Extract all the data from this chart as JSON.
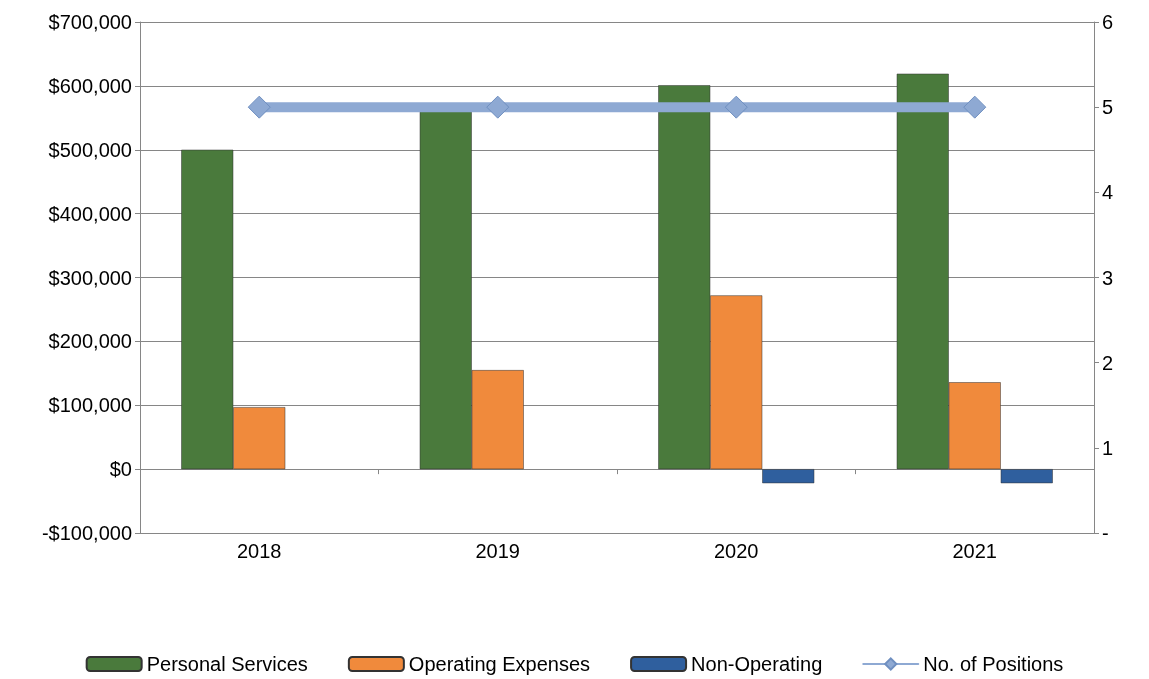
{
  "chart_data": {
    "type": "bar",
    "categories": [
      "2018",
      "2019",
      "2020",
      "2021"
    ],
    "series": [
      {
        "name": "Personal Services",
        "color": "#4a7a3c",
        "values": [
          500000,
          562000,
          601000,
          619000
        ]
      },
      {
        "name": "Operating Expenses",
        "color": "#f08a3c",
        "values": [
          97000,
          155000,
          272000,
          136000
        ]
      },
      {
        "name": "Non-Operating",
        "color": "#2f5f9e",
        "values": [
          null,
          null,
          -22000,
          -22000
        ]
      },
      {
        "name": "No. of Positions",
        "type": "line",
        "axis": "y2",
        "color": "#8ea9d3",
        "marker": "diamond",
        "values": [
          5,
          5,
          5,
          5
        ]
      }
    ],
    "ylim": [
      -100000,
      700000
    ],
    "yticks": [
      {
        "value": -100000,
        "label": "-$100,000"
      },
      {
        "value": 0,
        "label": "$0"
      },
      {
        "value": 100000,
        "label": "$100,000"
      },
      {
        "value": 200000,
        "label": "$200,000"
      },
      {
        "value": 300000,
        "label": "$300,000"
      },
      {
        "value": 400000,
        "label": "$400,000"
      },
      {
        "value": 500000,
        "label": "$500,000"
      },
      {
        "value": 600000,
        "label": "$600,000"
      },
      {
        "value": 700000,
        "label": "$700,000"
      }
    ],
    "y2lim": [
      0,
      6
    ],
    "y2ticks": [
      {
        "value": 0,
        "label": "-"
      },
      1,
      2,
      3,
      4,
      5,
      6
    ],
    "grid": "y",
    "legend": "bottom"
  }
}
